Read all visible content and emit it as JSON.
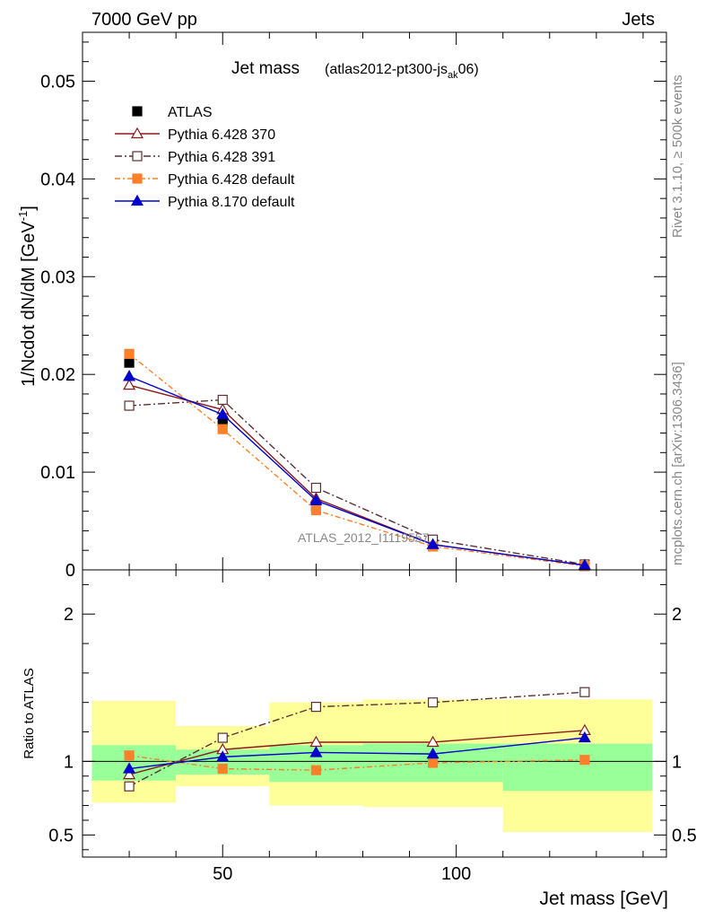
{
  "header": {
    "left": "7000 GeV pp",
    "right": "Jets",
    "side_top": "Rivet 3.1.10, ≥ 500k events",
    "side_bottom": "mcplots.cern.ch [arXiv:1306.3436]",
    "watermark": "ATLAS_2012_I1119557"
  },
  "chart_data": [
    {
      "type": "line",
      "title": "Jet mass",
      "subtitle_main": "(atlas2012-pt300-js",
      "subtitle_sub": "ak",
      "subtitle_end": "06)",
      "ylabel_main": "1/Ncdot dN/dM [GeV",
      "ylabel_sup": "-1",
      "ylabel_end": "]",
      "xlim": [
        20,
        145
      ],
      "ylim": [
        0,
        0.055
      ],
      "yticks": [
        0,
        0.01,
        0.02,
        0.03,
        0.04,
        0.05
      ],
      "ytick_labels": [
        "0",
        "0.01",
        "0.02",
        "0.03",
        "0.04",
        "0.05"
      ],
      "legend_position": "top-left",
      "x": [
        30,
        50,
        70,
        95,
        127.5
      ],
      "series": [
        {
          "name": "ATLAS",
          "color": "#000000",
          "marker": "square-filled",
          "dash": "",
          "values": [
            0.0212,
            0.0152,
            0.0065,
            0.0024,
            0.0004
          ]
        },
        {
          "name": "Pythia 6.428 370",
          "color": "#8b1a1a",
          "marker": "triangle-open",
          "dash": "",
          "values": [
            0.0189,
            0.0164,
            0.0073,
            0.0026,
            0.00048
          ]
        },
        {
          "name": "Pythia 6.428 391",
          "color": "#5a3030",
          "marker": "square-open",
          "dash": "8,3,2,3",
          "values": [
            0.0168,
            0.0174,
            0.0084,
            0.0031,
            0.00056
          ]
        },
        {
          "name": "Pythia 6.428 default",
          "color": "#ff7f2a",
          "marker": "square-filled",
          "dash": "6,3,2,3",
          "values": [
            0.0221,
            0.0144,
            0.0061,
            0.0024,
            0.0004
          ]
        },
        {
          "name": "Pythia 8.170 default",
          "color": "#0000cc",
          "marker": "triangle-filled",
          "dash": "",
          "values": [
            0.0198,
            0.0159,
            0.0071,
            0.0026,
            0.00047
          ]
        }
      ]
    },
    {
      "type": "line",
      "xlabel": "Jet mass [GeV]",
      "ylabel": "Ratio to ATLAS",
      "xlim": [
        20,
        145
      ],
      "ylim": [
        0.35,
        2.3
      ],
      "xticks": [
        50,
        100
      ],
      "xtick_labels": [
        "50",
        "100"
      ],
      "yticks": [
        0.5,
        1,
        2
      ],
      "ytick_labels": [
        "0.5",
        "1",
        "2"
      ],
      "reference": 1,
      "bands": [
        {
          "x0": 22,
          "x1": 40,
          "inner": [
            0.87,
            1.11
          ],
          "outer": [
            0.72,
            1.41
          ]
        },
        {
          "x0": 40,
          "x1": 60,
          "inner": [
            0.91,
            1.08
          ],
          "outer": [
            0.83,
            1.24
          ]
        },
        {
          "x0": 60,
          "x1": 80,
          "inner": [
            0.86,
            1.11
          ],
          "outer": [
            0.7,
            1.4
          ]
        },
        {
          "x0": 80,
          "x1": 110,
          "inner": [
            0.86,
            1.12
          ],
          "outer": [
            0.69,
            1.42
          ]
        },
        {
          "x0": 110,
          "x1": 142,
          "inner": [
            0.8,
            1.12
          ],
          "outer": [
            0.52,
            1.42
          ]
        }
      ],
      "x": [
        30,
        50,
        70,
        95,
        127.5
      ],
      "series": [
        {
          "name": "Pythia 6.428 370",
          "color": "#8b1a1a",
          "marker": "triangle-open",
          "dash": "",
          "values": [
            0.91,
            1.08,
            1.13,
            1.13,
            1.21
          ]
        },
        {
          "name": "Pythia 6.428 391",
          "color": "#5a3030",
          "marker": "square-open",
          "dash": "8,3,2,3",
          "values": [
            0.83,
            1.16,
            1.37,
            1.4,
            1.47
          ]
        },
        {
          "name": "Pythia 6.428 default",
          "color": "#ff7f2a",
          "marker": "square-filled",
          "dash": "6,3,2,3",
          "values": [
            1.04,
            0.95,
            0.94,
            0.99,
            1.01
          ]
        },
        {
          "name": "Pythia 8.170 default",
          "color": "#0000cc",
          "marker": "triangle-filled",
          "dash": "",
          "values": [
            0.95,
            1.03,
            1.06,
            1.05,
            1.16
          ]
        }
      ]
    }
  ]
}
